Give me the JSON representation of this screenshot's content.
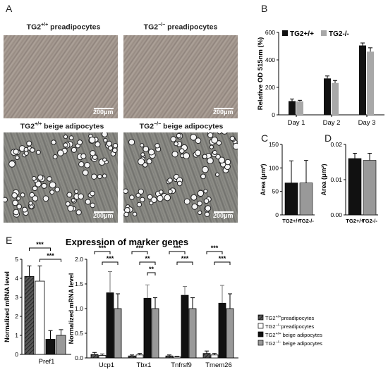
{
  "panels": {
    "A": "A",
    "B": "B",
    "C": "C",
    "D": "D",
    "E": "E"
  },
  "images": [
    {
      "caption_pre": "TG2",
      "caption_sup": "+/+",
      "caption_post": " preadipocytes",
      "scale": "200μm"
    },
    {
      "caption_pre": "TG2",
      "caption_sup": "−/−",
      "caption_post": " preadipocytes",
      "scale": "200μm"
    },
    {
      "caption_pre": "TG2",
      "caption_sup": "+/+",
      "caption_post": " beige adipocytes",
      "scale": "200μm"
    },
    {
      "caption_pre": "TG2",
      "caption_sup": "−/−",
      "caption_post": " beige adipocytes",
      "scale": "200μm"
    }
  ],
  "colors": {
    "wt": "#111111",
    "ko": "#a8a8a8"
  },
  "chart_data": [
    {
      "id": "B",
      "type": "bar",
      "categories": [
        "Day 1",
        "Day 2",
        "Day 3"
      ],
      "series": [
        {
          "name": "TG2+/+",
          "values": [
            100,
            265,
            505
          ],
          "err": [
            15,
            18,
            18
          ]
        },
        {
          "name": "TG2-/-",
          "values": [
            98,
            232,
            460
          ],
          "err": [
            8,
            18,
            28
          ]
        }
      ],
      "ylabel": "Relative OD 515nm (%)",
      "ylim": [
        0,
        600
      ],
      "yticks": [
        "0",
        "200",
        "400",
        "600"
      ],
      "legend": "top-left"
    },
    {
      "id": "C",
      "type": "bar",
      "categories": [
        "TG2+/+",
        "TG2-/-"
      ],
      "values": [
        68,
        68
      ],
      "err": [
        47,
        48
      ],
      "ylabel": "Area (μm²)",
      "ylim": [
        0,
        150
      ],
      "yticks": [
        "0",
        "50",
        "100",
        "150"
      ]
    },
    {
      "id": "D",
      "type": "bar",
      "categories": [
        "TG2+/+",
        "TG2-/-"
      ],
      "values": [
        0.016,
        0.0155
      ],
      "err": [
        0.0015,
        0.002
      ],
      "ylabel": "Area (μm²)",
      "ylim": [
        0,
        0.02
      ],
      "yticks": [
        "0.00",
        "0.01",
        "0.02"
      ]
    },
    {
      "id": "E1",
      "type": "bar",
      "categories": [
        "Pref1"
      ],
      "series": [
        {
          "name": "TG2+/+preadipocytes",
          "values": [
            4.1
          ],
          "err": [
            0.55
          ]
        },
        {
          "name": "TG2-/-preadipocytes",
          "values": [
            3.85
          ],
          "err": [
            0.8
          ]
        },
        {
          "name": "TG2+/+ beige adipocytes",
          "values": [
            0.8
          ],
          "err": [
            0.45
          ]
        },
        {
          "name": "TG2-/- beige adipocytes",
          "values": [
            1.0
          ],
          "err": [
            0.3
          ]
        }
      ],
      "ylabel": "Normalized mRNA level",
      "ylim": [
        0,
        5
      ],
      "yticks": [
        "0",
        "1",
        "2",
        "3",
        "4",
        "5"
      ],
      "sig": [
        "***",
        "***"
      ]
    },
    {
      "id": "E2",
      "type": "bar",
      "title": "Expression of marker genes",
      "categories": [
        "Ucp1",
        "Tbx1",
        "Tnfrsf9",
        "Tmem26"
      ],
      "series": [
        {
          "name": "TG2+/+preadipocytes",
          "values": [
            0.07,
            0.04,
            0.04,
            0.09
          ],
          "err": [
            0.04,
            0.02,
            0.02,
            0.05
          ]
        },
        {
          "name": "TG2-/-preadipocytes",
          "values": [
            0.05,
            0.06,
            0.02,
            0.06
          ],
          "err": [
            0.03,
            0.03,
            0.01,
            0.03
          ]
        },
        {
          "name": "TG2+/+ beige adipocytes",
          "values": [
            1.32,
            1.21,
            1.27,
            1.11
          ],
          "err": [
            0.43,
            0.27,
            0.18,
            0.36
          ]
        },
        {
          "name": "TG2-/- beige adipocytes",
          "values": [
            1.0,
            1.0,
            1.0,
            1.0
          ],
          "err": [
            0.3,
            0.22,
            0.22,
            0.3
          ]
        }
      ],
      "ylabel": "Normalized mRNA level",
      "ylim": [
        0,
        2.0
      ],
      "yticks": [
        "0.0",
        "0.5",
        "1.0",
        "1.5",
        "2.0"
      ],
      "sig": [
        [
          "***",
          "***"
        ],
        [
          "***",
          "**",
          "**"
        ],
        [
          "***",
          "***"
        ],
        [
          "***",
          "***"
        ]
      ],
      "legend": "right"
    }
  ],
  "legend_E": [
    {
      "pre": "TG2",
      "sup": "+/+",
      "post": "preadipocytes"
    },
    {
      "pre": "TG2",
      "sup": "−/−",
      "post": "preadipocytes"
    },
    {
      "pre": "TG2",
      "sup": "+/+",
      "post": " beige adipocytes"
    },
    {
      "pre": "TG2",
      "sup": "−/−",
      "post": " beige adipocytes"
    }
  ]
}
